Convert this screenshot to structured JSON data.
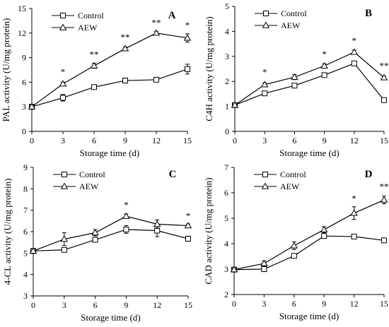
{
  "chart_data": [
    {
      "type": "line",
      "panel_label": "A",
      "xlabel": "Storage time (d)",
      "ylabel": "PAL activity (U/mg protein)",
      "x": [
        0,
        3,
        6,
        9,
        12,
        15
      ],
      "xlim": [
        0,
        15
      ],
      "ylim": [
        0,
        15
      ],
      "xticks": [
        0,
        3,
        6,
        9,
        12,
        15
      ],
      "yticks": [
        0,
        3,
        6,
        9,
        12,
        15
      ],
      "legend_position": "top-left",
      "series": [
        {
          "name": "Control",
          "marker": "square",
          "values": [
            3.0,
            4.1,
            5.4,
            6.2,
            6.3,
            7.6
          ],
          "errors": [
            0.3,
            0.4,
            0.2,
            0.3,
            0.2,
            0.6
          ]
        },
        {
          "name": "AEW",
          "marker": "triangle",
          "values": [
            3.0,
            5.8,
            8.0,
            10.1,
            12.0,
            11.4
          ],
          "errors": [
            0.2,
            0.2,
            0.3,
            0.2,
            0.2,
            0.5
          ]
        }
      ],
      "annotations": [
        {
          "x": 3,
          "y": 6.9,
          "text": "*"
        },
        {
          "x": 6,
          "y": 9.0,
          "text": "**"
        },
        {
          "x": 9,
          "y": 11.1,
          "text": "**"
        },
        {
          "x": 12,
          "y": 12.9,
          "text": "**"
        },
        {
          "x": 15,
          "y": 12.6,
          "text": "*"
        }
      ]
    },
    {
      "type": "line",
      "panel_label": "B",
      "xlabel": "Storage time (d)",
      "ylabel": "C4H activity (U/mg protein)",
      "x": [
        0,
        3,
        6,
        9,
        12,
        15
      ],
      "xlim": [
        0,
        15
      ],
      "ylim": [
        0,
        5
      ],
      "xticks": [
        0,
        3,
        6,
        9,
        12,
        15
      ],
      "yticks": [
        0,
        1,
        2,
        3,
        4,
        5
      ],
      "legend_position": "top-left",
      "series": [
        {
          "name": "Control",
          "marker": "square",
          "values": [
            1.05,
            1.52,
            1.83,
            2.25,
            2.72,
            1.25
          ],
          "errors": [
            0.05,
            0.05,
            0.05,
            0.06,
            0.08,
            0.05
          ]
        },
        {
          "name": "AEW",
          "marker": "triangle",
          "values": [
            1.05,
            1.87,
            2.17,
            2.62,
            3.17,
            2.15
          ],
          "errors": [
            0.05,
            0.07,
            0.1,
            0.08,
            0.08,
            0.05
          ]
        }
      ],
      "annotations": [
        {
          "x": 3,
          "y": 2.25,
          "text": "*"
        },
        {
          "x": 9,
          "y": 2.97,
          "text": "*"
        },
        {
          "x": 12,
          "y": 3.5,
          "text": "*"
        },
        {
          "x": 15,
          "y": 2.5,
          "text": "**"
        }
      ]
    },
    {
      "type": "line",
      "panel_label": "C",
      "xlabel": "Storage time (d)",
      "ylabel": "4-CL activity (U/mg protein)",
      "x": [
        0,
        3,
        6,
        9,
        12,
        15
      ],
      "xlim": [
        0,
        15
      ],
      "ylim": [
        3,
        9
      ],
      "xticks": [
        0,
        3,
        6,
        9,
        12,
        15
      ],
      "yticks": [
        3,
        4,
        5,
        6,
        7,
        8,
        9
      ],
      "legend_position": "top-left",
      "series": [
        {
          "name": "Control",
          "marker": "square",
          "values": [
            5.1,
            5.15,
            5.62,
            6.1,
            6.05,
            5.67
          ],
          "errors": [
            0.1,
            0.1,
            0.1,
            0.18,
            0.28,
            0.12
          ]
        },
        {
          "name": "AEW",
          "marker": "triangle",
          "values": [
            5.1,
            5.65,
            5.95,
            6.72,
            6.35,
            6.28
          ],
          "errors": [
            0.1,
            0.3,
            0.15,
            0.1,
            0.2,
            0.08
          ]
        }
      ],
      "annotations": [
        {
          "x": 9,
          "y": 7.1,
          "text": "*"
        },
        {
          "x": 15,
          "y": 6.6,
          "text": "*"
        }
      ]
    },
    {
      "type": "line",
      "panel_label": "D",
      "xlabel": "Storage time (d)",
      "ylabel": "CAD activity (U/mg protein)",
      "x": [
        0,
        3,
        6,
        9,
        12,
        15
      ],
      "xlim": [
        0,
        15
      ],
      "ylim": [
        2,
        7
      ],
      "xticks": [
        0,
        3,
        6,
        9,
        12,
        15
      ],
      "yticks": [
        2,
        3,
        4,
        5,
        6,
        7
      ],
      "legend_position": "top-left",
      "series": [
        {
          "name": "Control",
          "marker": "square",
          "values": [
            2.98,
            3.0,
            3.52,
            4.3,
            4.28,
            4.13
          ],
          "errors": [
            0.05,
            0.1,
            0.05,
            0.06,
            0.05,
            0.05
          ]
        },
        {
          "name": "AEW",
          "marker": "triangle",
          "values": [
            2.98,
            3.22,
            3.92,
            4.55,
            5.2,
            5.72
          ],
          "errors": [
            0.05,
            0.1,
            0.15,
            0.12,
            0.25,
            0.15
          ]
        }
      ],
      "annotations": [
        {
          "x": 12,
          "y": 5.65,
          "text": "*"
        },
        {
          "x": 15,
          "y": 6.12,
          "text": "**"
        }
      ]
    }
  ]
}
